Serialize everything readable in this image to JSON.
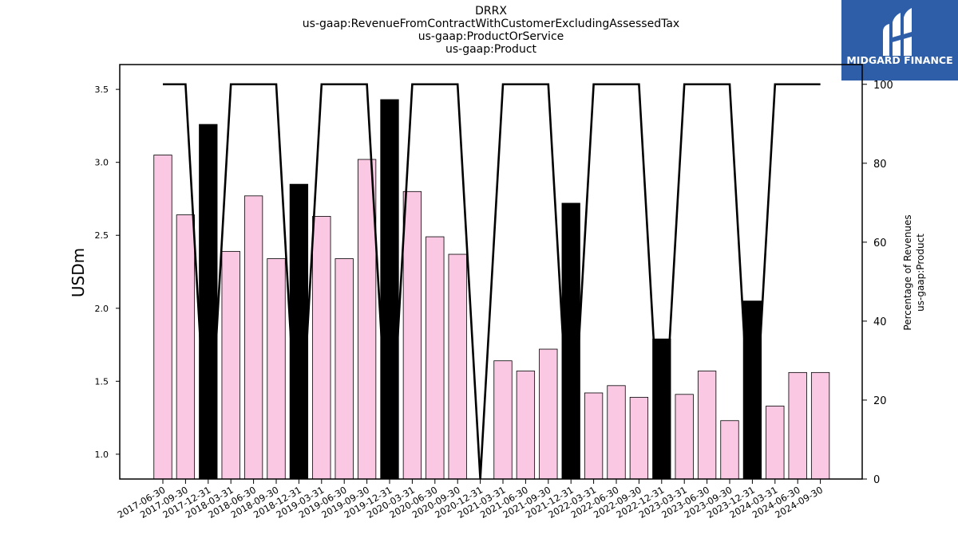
{
  "titles": {
    "line1": "DRRX",
    "line2": "us-gaap:RevenueFromContractWithCustomerExcludingAssessedTax",
    "line3": "us-gaap:ProductOrService",
    "line4": "us-gaap:Product"
  },
  "logo": {
    "text": "MIDGARD FINANCE"
  },
  "colors": {
    "bar_normal": "#fbc8e3",
    "bar_highlight": "#000000",
    "line": "#000000"
  },
  "chart_data": {
    "type": "bar",
    "categories": [
      "2017-06-30",
      "2017-09-30",
      "2017-12-31",
      "2018-03-31",
      "2018-06-30",
      "2018-09-30",
      "2018-12-31",
      "2019-03-31",
      "2019-06-30",
      "2019-09-30",
      "2019-12-31",
      "2020-03-31",
      "2020-06-30",
      "2020-09-30",
      "2020-12-31",
      "2021-03-31",
      "2021-06-30",
      "2021-09-30",
      "2021-12-31",
      "2022-03-31",
      "2022-06-30",
      "2022-09-30",
      "2022-12-31",
      "2023-03-31",
      "2023-06-30",
      "2023-09-30",
      "2023-12-31",
      "2024-03-31",
      "2024-06-30",
      "2024-09-30"
    ],
    "values": [
      3.05,
      2.64,
      3.26,
      2.39,
      2.77,
      2.34,
      2.85,
      2.63,
      2.34,
      3.02,
      3.43,
      2.8,
      2.49,
      2.37,
      0,
      1.64,
      1.57,
      1.72,
      2.72,
      1.42,
      1.47,
      1.39,
      1.79,
      1.41,
      1.57,
      1.23,
      2.05,
      1.33,
      1.56,
      1.56
    ],
    "highlight": [
      false,
      false,
      true,
      false,
      false,
      false,
      true,
      false,
      false,
      false,
      true,
      false,
      false,
      false,
      false,
      false,
      false,
      false,
      true,
      false,
      false,
      false,
      true,
      false,
      false,
      false,
      true,
      false,
      false,
      false
    ],
    "line_series": {
      "name": "",
      "values": [
        100,
        100,
        0,
        100,
        100,
        100,
        0,
        100,
        100,
        100,
        0,
        100,
        100,
        100,
        0,
        100,
        100,
        100,
        0,
        100,
        100,
        100,
        0,
        100,
        100,
        100,
        0,
        100,
        100,
        100
      ]
    },
    "ylabel": "USDm",
    "ylabel_right_line1": "Percentage of Revenues",
    "ylabel_right_line2": "us-gaap:Product",
    "ylim": [
      0.83,
      3.67
    ],
    "yticks": [
      "1.0",
      "1.5",
      "2.0",
      "2.5",
      "3.0",
      "3.5"
    ],
    "y2lim": [
      0,
      105
    ],
    "y2ticks": [
      "0",
      "20",
      "40",
      "60",
      "80",
      "100"
    ]
  }
}
